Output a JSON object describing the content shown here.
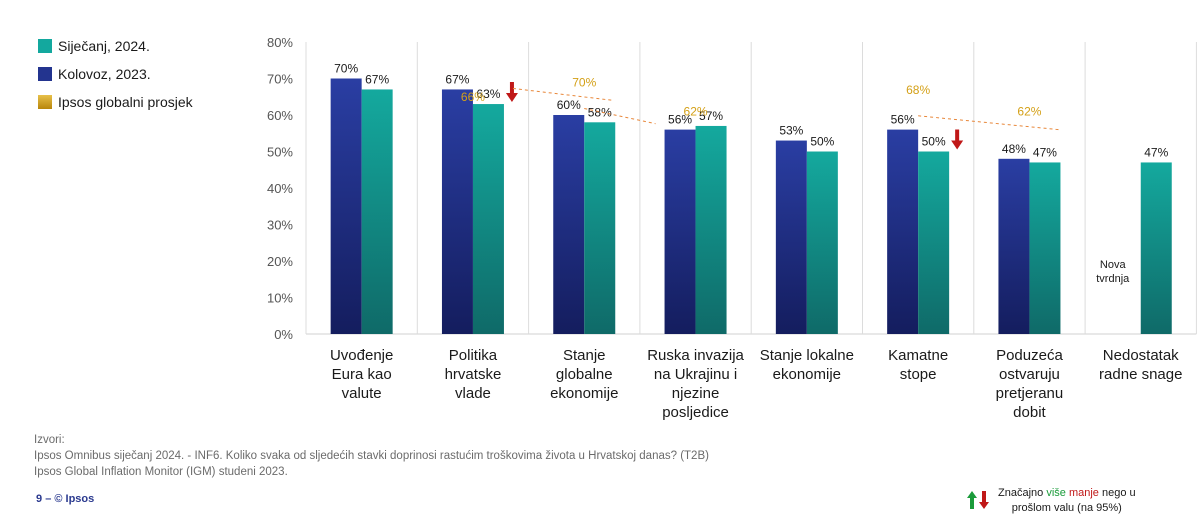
{
  "legend": {
    "items": [
      {
        "label": "Siječanj, 2024.",
        "color": "#13a89e"
      },
      {
        "label": "Kolovoz, 2023.",
        "color": "#23348f"
      },
      {
        "label": "Ipsos globalni prosjek",
        "color": "#d4a017"
      }
    ]
  },
  "sources": {
    "title": "Izvori:",
    "line1": "Ipsos Omnibus siječanj 2024.  -  INF6. Koliko svaka od sljedećih stavki doprinosi rastućim troškovima života u Hrvatskoj danas? (T2B)",
    "line2": "Ipsos Global Inflation Monitor  (IGM) studeni 2023."
  },
  "footer": {
    "page": "9",
    "sep": "–",
    "copyright": "© Ipsos"
  },
  "significance": {
    "prefix": "Značajno ",
    "more": "više",
    "space": " ",
    "less": "manje",
    "suffix": " nego u",
    "line2": "prošlom valu (na 95%)"
  },
  "colors": {
    "jan_top": "#14a99e",
    "jan_bottom": "#0f6a68",
    "aug_top": "#2a3ea3",
    "aug_bottom": "#141d5e",
    "global": "#d4a017",
    "trend": "#e8873a",
    "arrow_down": "#c01818",
    "arrow_up": "#1a9b3a"
  },
  "chart_data": {
    "type": "bar",
    "ylim": [
      0,
      80
    ],
    "yticks": [
      "0%",
      "10%",
      "20%",
      "30%",
      "40%",
      "50%",
      "60%",
      "70%",
      "80%"
    ],
    "categories": [
      [
        "Uvođenje",
        "Eura kao",
        "valute"
      ],
      [
        "Politika",
        "hrvatske",
        "vlade"
      ],
      [
        "Stanje",
        "globalne",
        "ekonomije"
      ],
      [
        "Ruska invazija",
        "na Ukrajinu i",
        "njezine",
        "posljedice"
      ],
      [
        "Stanje lokalne",
        "ekonomije"
      ],
      [
        "Kamatne",
        "stope"
      ],
      [
        "Poduzeća",
        "ostvaruju",
        "pretjeranu",
        "dobit"
      ],
      [
        "Nedostatak",
        "radne snage"
      ]
    ],
    "series": [
      {
        "name": "Kolovoz, 2023.",
        "values": [
          70,
          67,
          60,
          56,
          53,
          56,
          48,
          null
        ],
        "labels": [
          "70%",
          "67%",
          "60%",
          "56%",
          "53%",
          "56%",
          "48%",
          ""
        ]
      },
      {
        "name": "Siječanj, 2024.",
        "values": [
          67,
          63,
          58,
          57,
          50,
          50,
          47,
          47
        ],
        "labels": [
          "67%",
          "63%",
          "58%",
          "57%",
          "50%",
          "50%",
          "47%",
          "47%"
        ]
      }
    ],
    "global_average": {
      "name": "Ipsos globalni prosjek",
      "values": [
        null,
        66,
        70,
        62,
        null,
        68,
        62,
        null
      ],
      "labels": [
        "",
        "66%",
        "70%",
        "62%",
        "",
        "68%",
        "62%",
        ""
      ]
    },
    "significance_down": [
      false,
      true,
      false,
      false,
      false,
      true,
      false,
      false
    ],
    "new_item_note": {
      "category_index": 7,
      "lines": [
        "Nova",
        "tvrdnja"
      ]
    }
  }
}
